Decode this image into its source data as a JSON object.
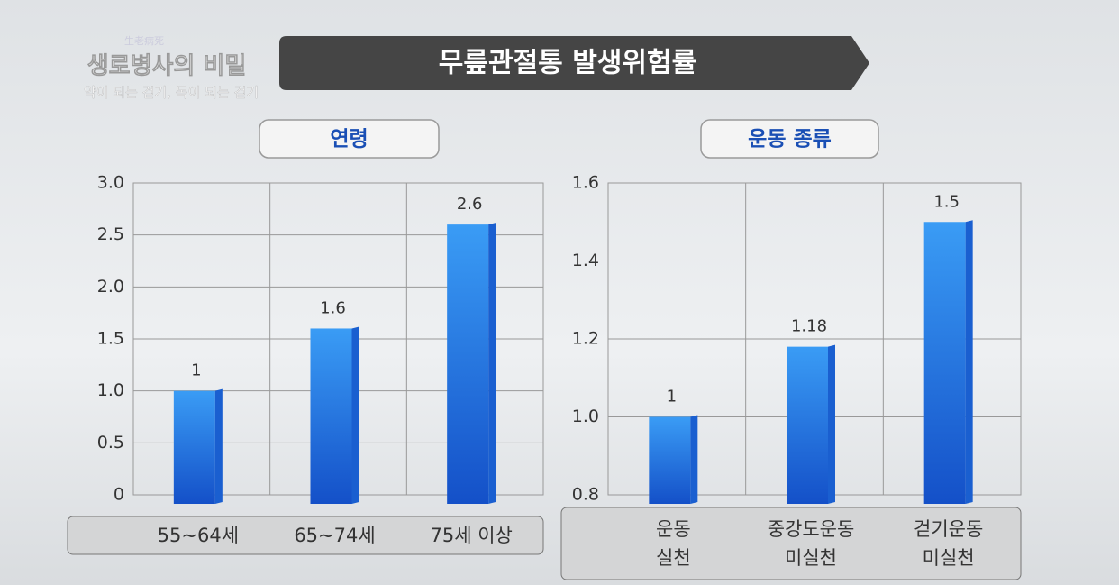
{
  "logo": {
    "hanja": "生老病死",
    "title": "생로병사의 비밀",
    "subtitle": "약이 되는 걷기, 독이 되는 걷기"
  },
  "banner": "무릎관절통 발생위험률",
  "chart_data": [
    {
      "type": "bar",
      "title": "연령",
      "categories": [
        "55~64세",
        "65~74세",
        "75세 이상"
      ],
      "values": [
        1,
        1.6,
        2.6
      ],
      "color": "#1f6fe0",
      "ylim": [
        0,
        3
      ],
      "yticks": [
        0,
        {
          "value": 0.5,
          "label": "0.5"
        },
        {
          "value": 1,
          "label": "1.0"
        },
        {
          "value": 1.5,
          "label": "1.5"
        },
        {
          "value": 2,
          "label": "2.0"
        },
        {
          "value": 2.5,
          "label": "2.5"
        },
        {
          "value": 3,
          "label": "3.0"
        }
      ],
      "grid": true
    },
    {
      "type": "bar",
      "title": "운동 종류",
      "categories": [
        "운동\n실천",
        "중강도운동\n미실천",
        "걷기운동\n미실천"
      ],
      "values": [
        1,
        1.18,
        1.5
      ],
      "color": "#1f6fe0",
      "ylim": [
        0.8,
        1.6
      ],
      "yticks": [
        0.8,
        {
          "value": 1,
          "label": "1.0"
        },
        1.2,
        1.4,
        1.6
      ],
      "grid": true
    }
  ]
}
